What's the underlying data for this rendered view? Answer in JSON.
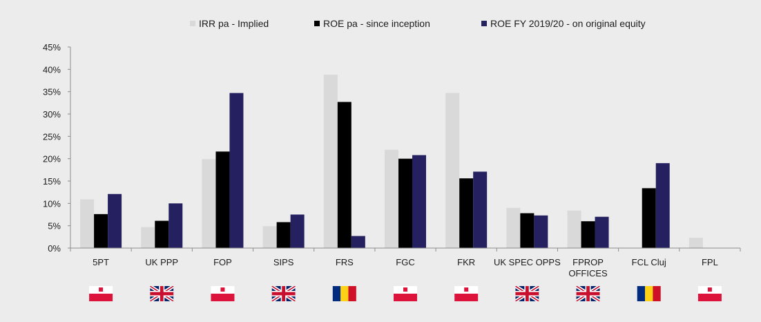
{
  "chart_data": {
    "type": "bar",
    "title": "",
    "xlabel": "",
    "ylabel": "",
    "ylim": [
      0,
      45
    ],
    "yticks": [
      "0%",
      "5%",
      "10%",
      "15%",
      "20%",
      "25%",
      "30%",
      "35%",
      "40%",
      "45%"
    ],
    "categories": [
      "5PT",
      "UK PPP",
      "FOP",
      "SIPS",
      "FRS",
      "FGC",
      "FKR",
      "UK SPEC OPPS",
      "FPROP OFFICES",
      "FCL Cluj",
      "FPL"
    ],
    "flags": [
      "poland",
      "uk",
      "poland",
      "uk",
      "romania",
      "poland",
      "poland",
      "uk",
      "uk",
      "romania",
      "poland"
    ],
    "series": [
      {
        "name": "IRR pa - Implied",
        "color": "#d9d9d9",
        "values": [
          10.9,
          4.7,
          19.9,
          4.9,
          38.8,
          22.0,
          34.7,
          9.0,
          8.4,
          null,
          2.3
        ]
      },
      {
        "name": "ROE pa - since inception",
        "color": "#000000",
        "values": [
          7.6,
          6.1,
          21.6,
          5.8,
          32.7,
          20.0,
          15.6,
          7.8,
          6.0,
          13.4,
          null
        ]
      },
      {
        "name": "ROE FY 2019/20 - on original equity",
        "color": "#252060",
        "values": [
          12.1,
          10.0,
          34.7,
          7.5,
          2.7,
          20.8,
          17.1,
          7.3,
          7.0,
          19.0,
          null
        ]
      }
    ],
    "legend_position": "top-center",
    "grid": false
  }
}
